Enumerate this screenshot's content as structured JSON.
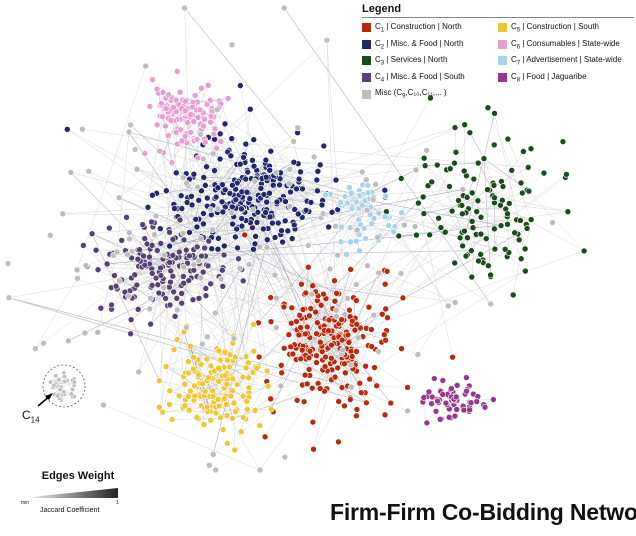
{
  "title": "Firm-Firm Co-Bidding Network",
  "legend": {
    "title": "Legend",
    "items": [
      {
        "sym": "C",
        "sub": "1",
        "text": " | Construction | North",
        "color": "#b82a0c"
      },
      {
        "sym": "C",
        "sub": "5",
        "text": " | Construction | South",
        "color": "#ecc634"
      },
      {
        "sym": "C",
        "sub": "2",
        "text": " | Misc. & Food | North",
        "color": "#22286b"
      },
      {
        "sym": "C",
        "sub": "6",
        "text": " | Consumables | State-wide",
        "color": "#e89ccf"
      },
      {
        "sym": "C",
        "sub": "3",
        "text": " | Services | North",
        "color": "#1b4a1c"
      },
      {
        "sym": "C",
        "sub": "7",
        "text": " | Advertisement | State-wide",
        "color": "#a9d2ea"
      },
      {
        "sym": "C",
        "sub": "4",
        "text": " | Misc. & Food | South",
        "color": "#564074"
      },
      {
        "sym": "C",
        "sub": "8",
        "text": " | Food | Jaguaribe",
        "color": "#98368d"
      },
      {
        "sym": "Misc (C",
        "sub": "9",
        "text": ",C₁₀,C₁₁,... )",
        "color": "#bdbdbd"
      }
    ]
  },
  "edges_weight": {
    "title": "Edges Weight",
    "min_label": "min",
    "max_label": "1",
    "caption": "Jaccard Coefficient"
  },
  "annotation": {
    "sym": "C",
    "sub": "14"
  },
  "clusters": [
    {
      "id": "C1",
      "color": "#b82a0c",
      "count": 230
    },
    {
      "id": "C2",
      "color": "#22286b",
      "count": 260
    },
    {
      "id": "C3",
      "color": "#1b4a1c",
      "count": 120
    },
    {
      "id": "C4",
      "color": "#564074",
      "count": 150
    },
    {
      "id": "C5",
      "color": "#ecc634",
      "count": 150
    },
    {
      "id": "C6",
      "color": "#e89ccf",
      "count": 110
    },
    {
      "id": "C7",
      "color": "#a9d2ea",
      "count": 60
    },
    {
      "id": "C8",
      "color": "#98368d",
      "count": 60
    },
    {
      "id": "Misc",
      "color": "#bdbdbd",
      "count": 130
    }
  ]
}
